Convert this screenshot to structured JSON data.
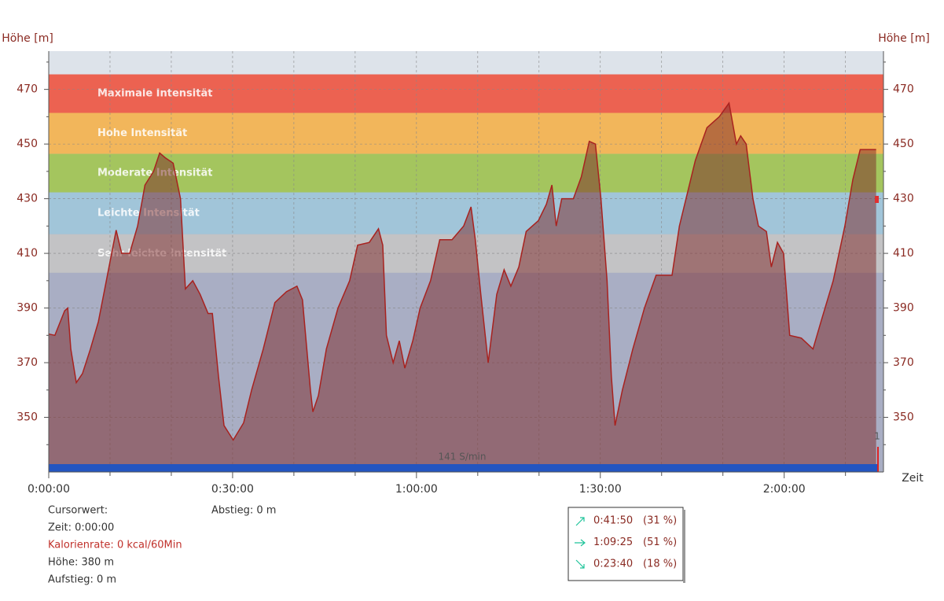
{
  "chart_data": {
    "type": "area",
    "y_label": "Höhe [m]",
    "x_label": "Zeit",
    "x": [
      0,
      1,
      2.6,
      3.1,
      3.6,
      4.5,
      5.5,
      6.8,
      8.1,
      9.4,
      11,
      11.9,
      13.2,
      14.5,
      15.7,
      17.1,
      18.1,
      19,
      20.3,
      21.5,
      22.3,
      23.5,
      24.7,
      26,
      26.7,
      27.7,
      28.6,
      30.1,
      31.8,
      33.1,
      35,
      36.9,
      38.8,
      40.5,
      41.4,
      42.7,
      43.1,
      44,
      45.3,
      47.2,
      49.1,
      50.4,
      52.3,
      53.8,
      54.5,
      55.1,
      56.2,
      57.2,
      58.1,
      59.4,
      60.6,
      62.3,
      63.8,
      65.8,
      67.7,
      68.9,
      69.6,
      70.5,
      71.7,
      73.1,
      74.3,
      75.4,
      76.7,
      77.9,
      79.9,
      81.2,
      82.1,
      82.8,
      83.7,
      85.6,
      86.9,
      88.2,
      89.2,
      90.1,
      91.1,
      91.8,
      92.4,
      93.6,
      95.3,
      97.2,
      99.1,
      101.7,
      102.9,
      104.2,
      105.5,
      107.4,
      109.4,
      111,
      112.2,
      112.9,
      113.8,
      114.9,
      115.8,
      117.1,
      117.9,
      118.9,
      119.9,
      120.9,
      122.8,
      124.7,
      126,
      128,
      129.9,
      131.2,
      132.4,
      134.1,
      135
    ],
    "values": [
      380.5,
      380,
      389,
      390,
      375,
      362.7,
      366,
      375,
      385,
      400,
      418.5,
      410,
      410,
      420,
      435,
      440,
      446.7,
      445,
      443,
      430,
      397,
      400,
      395,
      388,
      388,
      365,
      347,
      341.7,
      348,
      360,
      375,
      392,
      396,
      398,
      393,
      360,
      352,
      358,
      375,
      390,
      400,
      413,
      414,
      419,
      413,
      380,
      370,
      378,
      368,
      378,
      390,
      400,
      415,
      415,
      420,
      427,
      415,
      395,
      370,
      395,
      404,
      398,
      405,
      418,
      422,
      428,
      435,
      420,
      430,
      430,
      438,
      451,
      450,
      430,
      400,
      365,
      347,
      360,
      375,
      390,
      402,
      402,
      420,
      432,
      444,
      456,
      460,
      465,
      450,
      453,
      450,
      430,
      420,
      418,
      405,
      414,
      410,
      380,
      379,
      375,
      385,
      400,
      420,
      437,
      448,
      448,
      448
    ],
    "color": "#7c2626",
    "line_color": "#a8221f",
    "xlim": [
      0,
      136.2
    ],
    "ylim": [
      330,
      484
    ],
    "xticks": [
      {
        "value": 0,
        "label": "0:00:00"
      },
      {
        "value": 30,
        "label": "0:30:00"
      },
      {
        "value": 60,
        "label": "1:00:00"
      },
      {
        "value": 90,
        "label": "1:30:00"
      },
      {
        "value": 120,
        "label": "2:00:00"
      }
    ],
    "xminor": [
      10,
      20,
      40,
      50,
      70,
      80,
      100,
      110,
      130
    ],
    "yticks": [
      350,
      370,
      390,
      410,
      430,
      450,
      470
    ],
    "yminor": [
      340,
      360,
      380,
      400,
      420,
      440,
      460,
      480
    ],
    "grid": true,
    "zones": [
      {
        "label": "Maximale Intensität",
        "from": 461.4,
        "to": 475.5,
        "color": "#ec6251"
      },
      {
        "label": "Hohe Intensität",
        "from": 446.4,
        "to": 461.4,
        "color": "#f2b65b"
      },
      {
        "label": "Moderate Intensität",
        "from": 432.3,
        "to": 446.4,
        "color": "#a4c55e"
      },
      {
        "label": "Leichte Intensität",
        "from": 417,
        "to": 432.3,
        "color": "#a1c5d9"
      },
      {
        "label": "Sehr leichte Intensität",
        "from": 402.9,
        "to": 417,
        "color": "#c3c3c5"
      }
    ],
    "cadence_label": "141 S/min",
    "marker_label": "1"
  },
  "info": {
    "lines": [
      "Cursorwert:",
      "Zeit:  0:00:00",
      "Kalorienrate:  0 kcal/60Min",
      "Höhe:  380 m",
      "Aufstieg:  0 m"
    ],
    "descent": "Abstieg:  0 m"
  },
  "summary": [
    {
      "time": "0:41:50",
      "percent": "(31 %)"
    },
    {
      "time": "1:09:25",
      "percent": "(51 %)"
    },
    {
      "time": "0:23:40",
      "percent": "(18 %)"
    }
  ]
}
